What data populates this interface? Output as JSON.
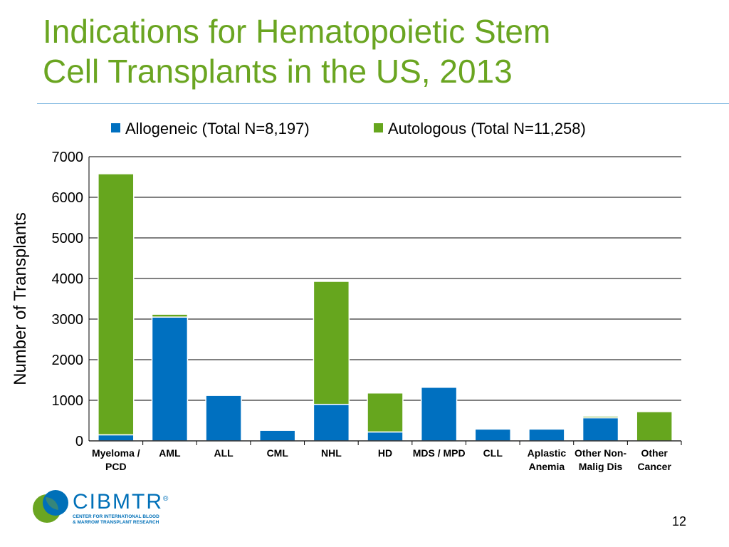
{
  "slide": {
    "title_line1": "Indications for Hematopoietic Stem",
    "title_line2": "Cell Transplants in the US, 2013",
    "page_number": "12",
    "logo": {
      "name": "CIBMTR",
      "mark": "®",
      "subtitle_line1": "CENTER FOR INTERNATIONAL BLOOD",
      "subtitle_line2": "& MARROW TRANSPLANT RESEARCH"
    }
  },
  "chart_data": {
    "type": "bar",
    "stacked": true,
    "title": "",
    "xlabel": "",
    "ylabel": "Number of  Transplants",
    "ylim": [
      0,
      7000
    ],
    "yticks": [
      0,
      1000,
      2000,
      3000,
      4000,
      5000,
      6000,
      7000
    ],
    "grid": true,
    "legend_position": "top",
    "categories": [
      [
        "Myeloma /",
        "PCD"
      ],
      [
        "AML"
      ],
      [
        "ALL"
      ],
      [
        "CML"
      ],
      [
        "NHL"
      ],
      [
        "HD"
      ],
      [
        "MDS / MPD"
      ],
      [
        "CLL"
      ],
      [
        "Aplastic",
        "Anemia"
      ],
      [
        "Other Non-",
        "Malig Dis"
      ],
      [
        "Other",
        "Cancer"
      ]
    ],
    "series": [
      {
        "name": "Allogeneic (Total N=8,197)",
        "color": "#0070c0",
        "values": [
          150,
          3050,
          1120,
          260,
          900,
          220,
          1320,
          290,
          290,
          570,
          0
        ]
      },
      {
        "name": "Autologous (Total N=11,258)",
        "color": "#66a61e",
        "values": [
          6430,
          70,
          0,
          0,
          3030,
          960,
          0,
          0,
          0,
          40,
          720
        ]
      }
    ]
  }
}
